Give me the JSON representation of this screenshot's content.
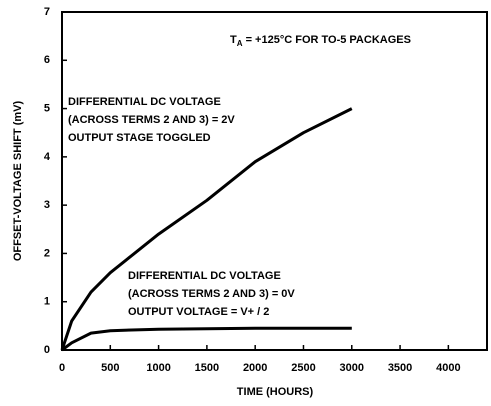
{
  "chart_data": {
    "type": "line",
    "x_label": "TIME (HOURS)",
    "y_label": "OFFSET-VOLTAGE SHIFT (mV)",
    "x": [
      0,
      100,
      300,
      500,
      1000,
      1500,
      2000,
      2500,
      3000
    ],
    "series": [
      {
        "color": "#000000",
        "values": [
          0,
          0.6,
          1.2,
          1.6,
          2.4,
          3.1,
          3.9,
          4.5,
          5.0
        ]
      },
      {
        "color": "#000000",
        "values": [
          0,
          0.15,
          0.35,
          0.4,
          0.43,
          0.44,
          0.45,
          0.45,
          0.45
        ]
      }
    ],
    "xlim": [
      0,
      4400
    ],
    "xticks": [
      0,
      500,
      1000,
      1500,
      2000,
      2500,
      3000,
      3500,
      4000
    ],
    "ylim": [
      0,
      7
    ],
    "yticks": [
      0,
      1,
      2,
      3,
      4,
      5,
      6,
      7
    ],
    "grid": false,
    "condition": [
      "T",
      "A",
      " = +125°C FOR TO-5 PACKAGES"
    ],
    "annotations": [
      [
        "DIFFERENTIAL DC VOLTAGE",
        "(ACROSS TERMS 2 AND 3) = 2V",
        "OUTPUT STAGE TOGGLED"
      ],
      [
        "DIFFERENTIAL DC VOLTAGE",
        "(ACROSS TERMS 2 AND 3) = 0V",
        "OUTPUT VOLTAGE = V+ / 2"
      ]
    ]
  }
}
